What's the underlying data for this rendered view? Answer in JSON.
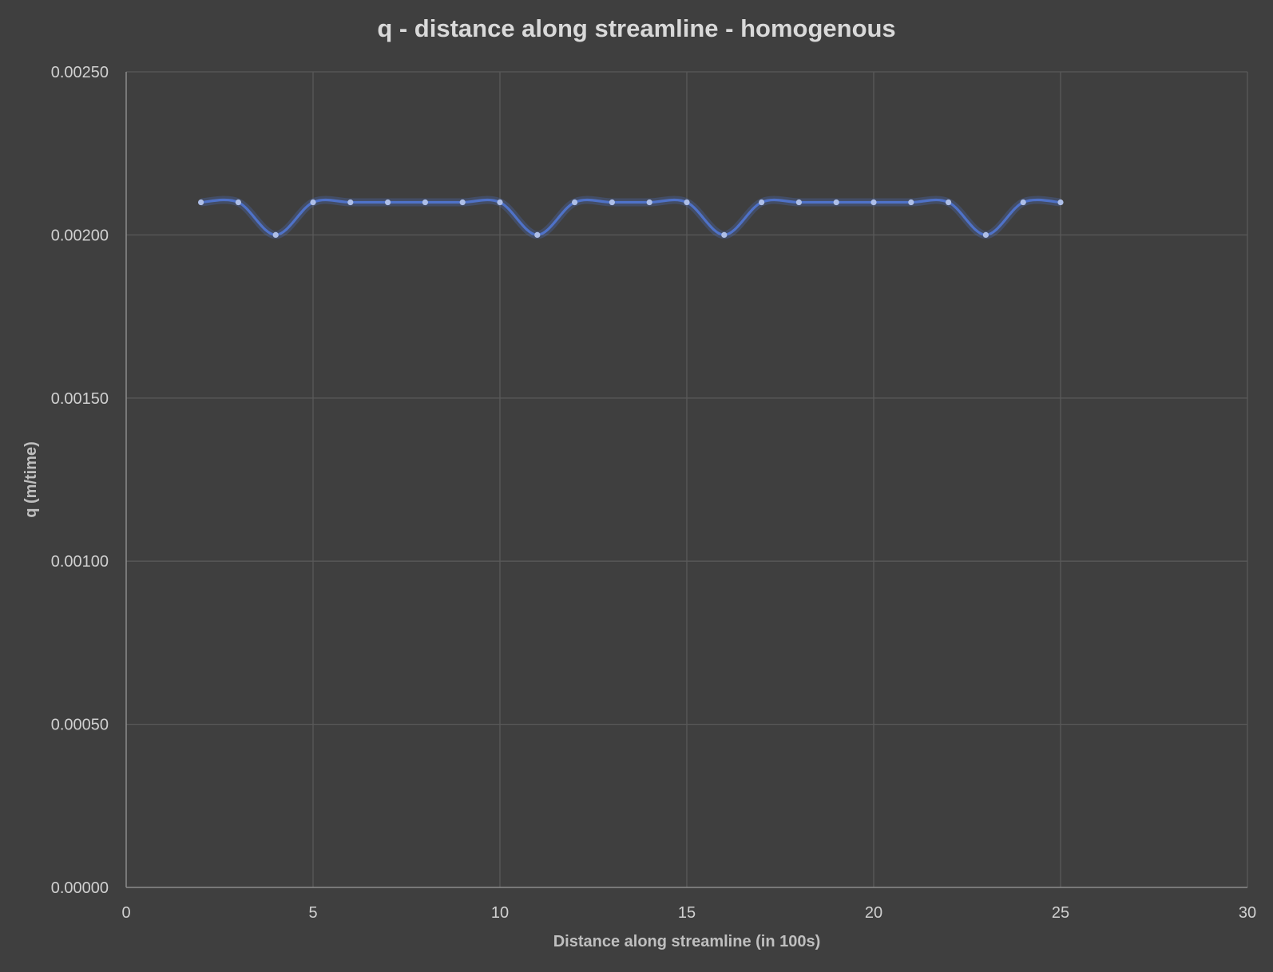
{
  "chart_data": {
    "type": "line",
    "title": "q - distance along streamline - homogenous",
    "xlabel": "Distance along streamline (in 100s)",
    "ylabel": "q (m/time)",
    "xlim": [
      0,
      30
    ],
    "ylim": [
      0,
      0.0025
    ],
    "x_ticks": [
      "0",
      "5",
      "10",
      "15",
      "20",
      "25",
      "30"
    ],
    "y_ticks": [
      "0.00000",
      "0.00050",
      "0.00100",
      "0.00150",
      "0.00200",
      "0.00250"
    ],
    "grid": true,
    "smoothed": true,
    "markers": true,
    "legend": "none",
    "series": [
      {
        "color": "#4f72c8",
        "x": [
          2,
          3,
          4,
          5,
          6,
          7,
          8,
          9,
          10,
          11,
          12,
          13,
          14,
          15,
          16,
          17,
          18,
          19,
          20,
          21,
          22,
          23,
          24,
          25
        ],
        "y": [
          0.0021,
          0.0021,
          0.002,
          0.0021,
          0.0021,
          0.0021,
          0.0021,
          0.0021,
          0.0021,
          0.002,
          0.0021,
          0.0021,
          0.0021,
          0.0021,
          0.002,
          0.0021,
          0.0021,
          0.0021,
          0.0021,
          0.0021,
          0.0021,
          0.002,
          0.0021,
          0.0021
        ]
      }
    ]
  }
}
